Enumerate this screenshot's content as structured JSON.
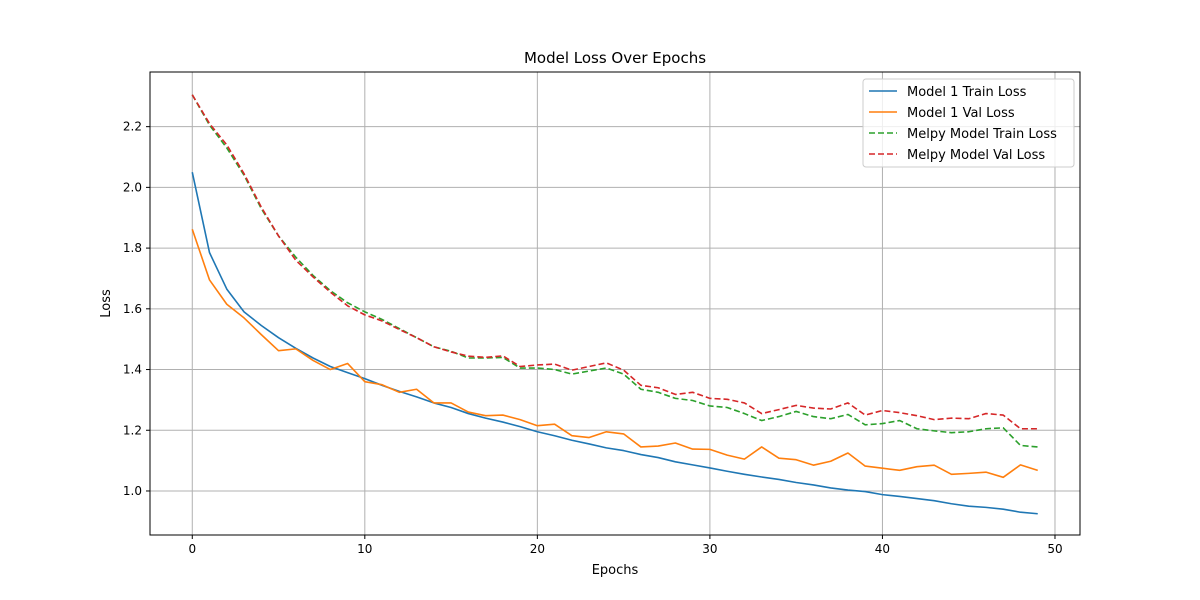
{
  "chart_data": {
    "type": "line",
    "title": "Model Loss Over Epochs",
    "xlabel": "Epochs",
    "ylabel": "Loss",
    "xlim": [
      -2.45,
      51.45
    ],
    "ylim": [
      0.855,
      2.38
    ],
    "xticks": [
      0,
      10,
      20,
      30,
      40,
      50
    ],
    "yticks": [
      1.0,
      1.2,
      1.4,
      1.6,
      1.8,
      2.0,
      2.2
    ],
    "grid": true,
    "legend_position": "top-right",
    "x": [
      0,
      1,
      2,
      3,
      4,
      5,
      6,
      7,
      8,
      9,
      10,
      11,
      12,
      13,
      14,
      15,
      16,
      17,
      18,
      19,
      20,
      21,
      22,
      23,
      24,
      25,
      26,
      27,
      28,
      29,
      30,
      31,
      32,
      33,
      34,
      35,
      36,
      37,
      38,
      39,
      40,
      41,
      42,
      43,
      44,
      45,
      46,
      47,
      48,
      49
    ],
    "series": [
      {
        "name": "Model 1 Train Loss",
        "color": "#1f77b4",
        "dash": "solid",
        "values": [
          2.05,
          1.785,
          1.665,
          1.59,
          1.545,
          1.505,
          1.47,
          1.438,
          1.41,
          1.39,
          1.37,
          1.348,
          1.328,
          1.31,
          1.29,
          1.275,
          1.255,
          1.24,
          1.227,
          1.212,
          1.195,
          1.182,
          1.167,
          1.155,
          1.142,
          1.133,
          1.12,
          1.11,
          1.096,
          1.086,
          1.076,
          1.065,
          1.055,
          1.046,
          1.038,
          1.028,
          1.02,
          1.01,
          1.003,
          0.998,
          0.988,
          0.982,
          0.975,
          0.968,
          0.958,
          0.95,
          0.946,
          0.94,
          0.93,
          0.925
        ]
      },
      {
        "name": "Model 1 Val Loss",
        "color": "#ff7f0e",
        "dash": "solid",
        "values": [
          1.862,
          1.695,
          1.615,
          1.57,
          1.515,
          1.462,
          1.468,
          1.43,
          1.4,
          1.42,
          1.36,
          1.35,
          1.325,
          1.335,
          1.29,
          1.29,
          1.26,
          1.248,
          1.25,
          1.235,
          1.215,
          1.22,
          1.182,
          1.176,
          1.195,
          1.188,
          1.145,
          1.148,
          1.158,
          1.138,
          1.137,
          1.118,
          1.105,
          1.145,
          1.108,
          1.103,
          1.085,
          1.098,
          1.125,
          1.082,
          1.075,
          1.068,
          1.08,
          1.085,
          1.055,
          1.058,
          1.062,
          1.045,
          1.086,
          1.068
        ]
      },
      {
        "name": "Melpy Model Train Loss",
        "color": "#2ca02c",
        "dash": "dashed",
        "values": [
          2.305,
          2.205,
          2.13,
          2.04,
          1.93,
          1.84,
          1.77,
          1.71,
          1.66,
          1.62,
          1.59,
          1.565,
          1.535,
          1.505,
          1.475,
          1.46,
          1.438,
          1.438,
          1.44,
          1.405,
          1.405,
          1.4,
          1.385,
          1.395,
          1.405,
          1.385,
          1.335,
          1.325,
          1.305,
          1.298,
          1.28,
          1.275,
          1.255,
          1.232,
          1.245,
          1.262,
          1.245,
          1.238,
          1.252,
          1.218,
          1.222,
          1.232,
          1.205,
          1.198,
          1.192,
          1.195,
          1.205,
          1.208,
          1.15,
          1.145
        ]
      },
      {
        "name": "Melpy Model Val Loss",
        "color": "#d62728",
        "dash": "dashed",
        "values": [
          2.305,
          2.21,
          2.14,
          2.045,
          1.935,
          1.84,
          1.76,
          1.705,
          1.655,
          1.61,
          1.58,
          1.56,
          1.532,
          1.505,
          1.475,
          1.458,
          1.444,
          1.44,
          1.445,
          1.41,
          1.415,
          1.418,
          1.398,
          1.41,
          1.422,
          1.398,
          1.348,
          1.34,
          1.318,
          1.325,
          1.305,
          1.302,
          1.29,
          1.255,
          1.268,
          1.282,
          1.273,
          1.27,
          1.29,
          1.25,
          1.265,
          1.258,
          1.248,
          1.235,
          1.24,
          1.238,
          1.255,
          1.25,
          1.205,
          1.205
        ]
      }
    ]
  }
}
